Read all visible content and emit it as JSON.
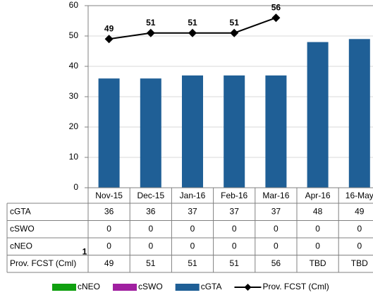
{
  "chart_data": {
    "type": "bar",
    "categories": [
      "Nov-15",
      "Dec-15",
      "Jan-16",
      "Feb-16",
      "Mar-16",
      "Apr-16",
      "16-May"
    ],
    "series": [
      {
        "name": "cGTA",
        "type": "bar",
        "color": "#1f5f96",
        "values": [
          36,
          36,
          37,
          37,
          37,
          48,
          49
        ]
      },
      {
        "name": "cSWO",
        "type": "bar",
        "color": "#a020a0",
        "values": [
          0,
          0,
          0,
          0,
          0,
          0,
          0
        ]
      },
      {
        "name": "cNEO",
        "type": "bar",
        "color": "#10a010",
        "values": [
          0,
          0,
          0,
          0,
          0,
          0,
          0
        ]
      },
      {
        "name": "Prov. FCST (Cml)",
        "type": "line",
        "color": "#000000",
        "values": [
          49,
          51,
          51,
          51,
          56,
          null,
          null
        ],
        "value_labels": [
          "49",
          "51",
          "51",
          "51",
          "56",
          "TBD",
          "TBD"
        ]
      }
    ],
    "annotation": "1",
    "ylim": [
      0,
      60
    ],
    "yticks": [
      0,
      10,
      20,
      30,
      40,
      50,
      60
    ],
    "grid": true,
    "legend": "bottom"
  }
}
